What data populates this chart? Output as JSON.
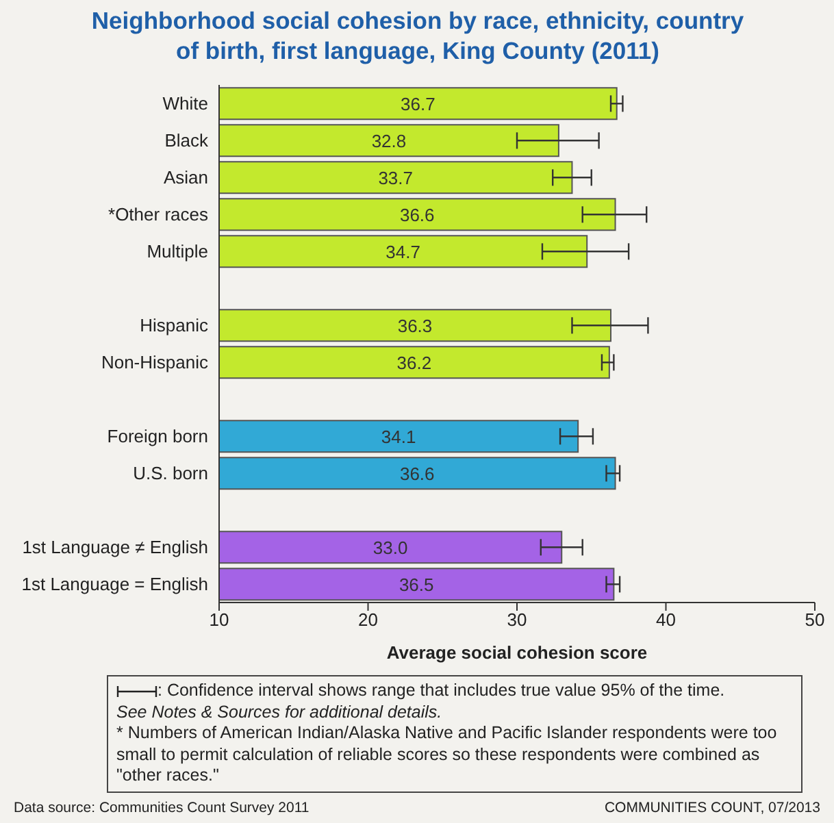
{
  "chart_data": {
    "type": "bar",
    "orientation": "horizontal",
    "title": "Neighborhood social cohesion by race, ethnicity, country of birth, first language, King County (2011)",
    "xlabel": "Average social cohesion score",
    "categories": [
      "White",
      "Black",
      "Asian",
      "*Other races",
      "Multiple",
      null,
      "Hispanic",
      "Non-Hispanic",
      null,
      "Foreign born",
      "U.S. born",
      null,
      "1st Language ≠ English",
      "1st Language = English"
    ],
    "values": [
      36.7,
      32.8,
      33.7,
      36.6,
      34.7,
      null,
      36.3,
      36.2,
      null,
      34.1,
      36.6,
      null,
      33.0,
      36.5
    ],
    "value_labels": [
      "36.7",
      "32.8",
      "33.7",
      "36.6",
      "34.7",
      null,
      "36.3",
      "36.2",
      null,
      "34.1",
      "36.6",
      null,
      "33.0",
      "36.5"
    ],
    "errors": [
      [
        36.3,
        37.1
      ],
      [
        30.0,
        35.5
      ],
      [
        32.4,
        35.0
      ],
      [
        34.4,
        38.7
      ],
      [
        31.7,
        37.5
      ],
      null,
      [
        33.7,
        38.8
      ],
      [
        35.7,
        36.5
      ],
      null,
      [
        32.9,
        35.1
      ],
      [
        36.0,
        36.9
      ],
      null,
      [
        31.6,
        34.4
      ],
      [
        36.0,
        36.9
      ]
    ],
    "colors": [
      "#c3e92d",
      "#c3e92d",
      "#c3e92d",
      "#c3e92d",
      "#c3e92d",
      null,
      "#c3e92d",
      "#c3e92d",
      null,
      "#31a9d6",
      "#31a9d6",
      null,
      "#a463e6",
      "#a463e6"
    ],
    "xlim": [
      10,
      50
    ],
    "xticks": [
      10,
      20,
      30,
      40,
      50
    ],
    "grid": false,
    "legend": false,
    "annotations": [
      ": Confidence interval shows range that includes true value 95% of the time.",
      "See Notes & Sources for additional details.",
      "* Numbers of American Indian/Alaska Native and Pacific Islander respondents were too small to permit calculation of reliable scores so these respondents were combined as \"other races.\"",
      "Data source: Communities Count Survey 2011",
      "COMMUNITIES COUNT, 07/2013"
    ]
  }
}
